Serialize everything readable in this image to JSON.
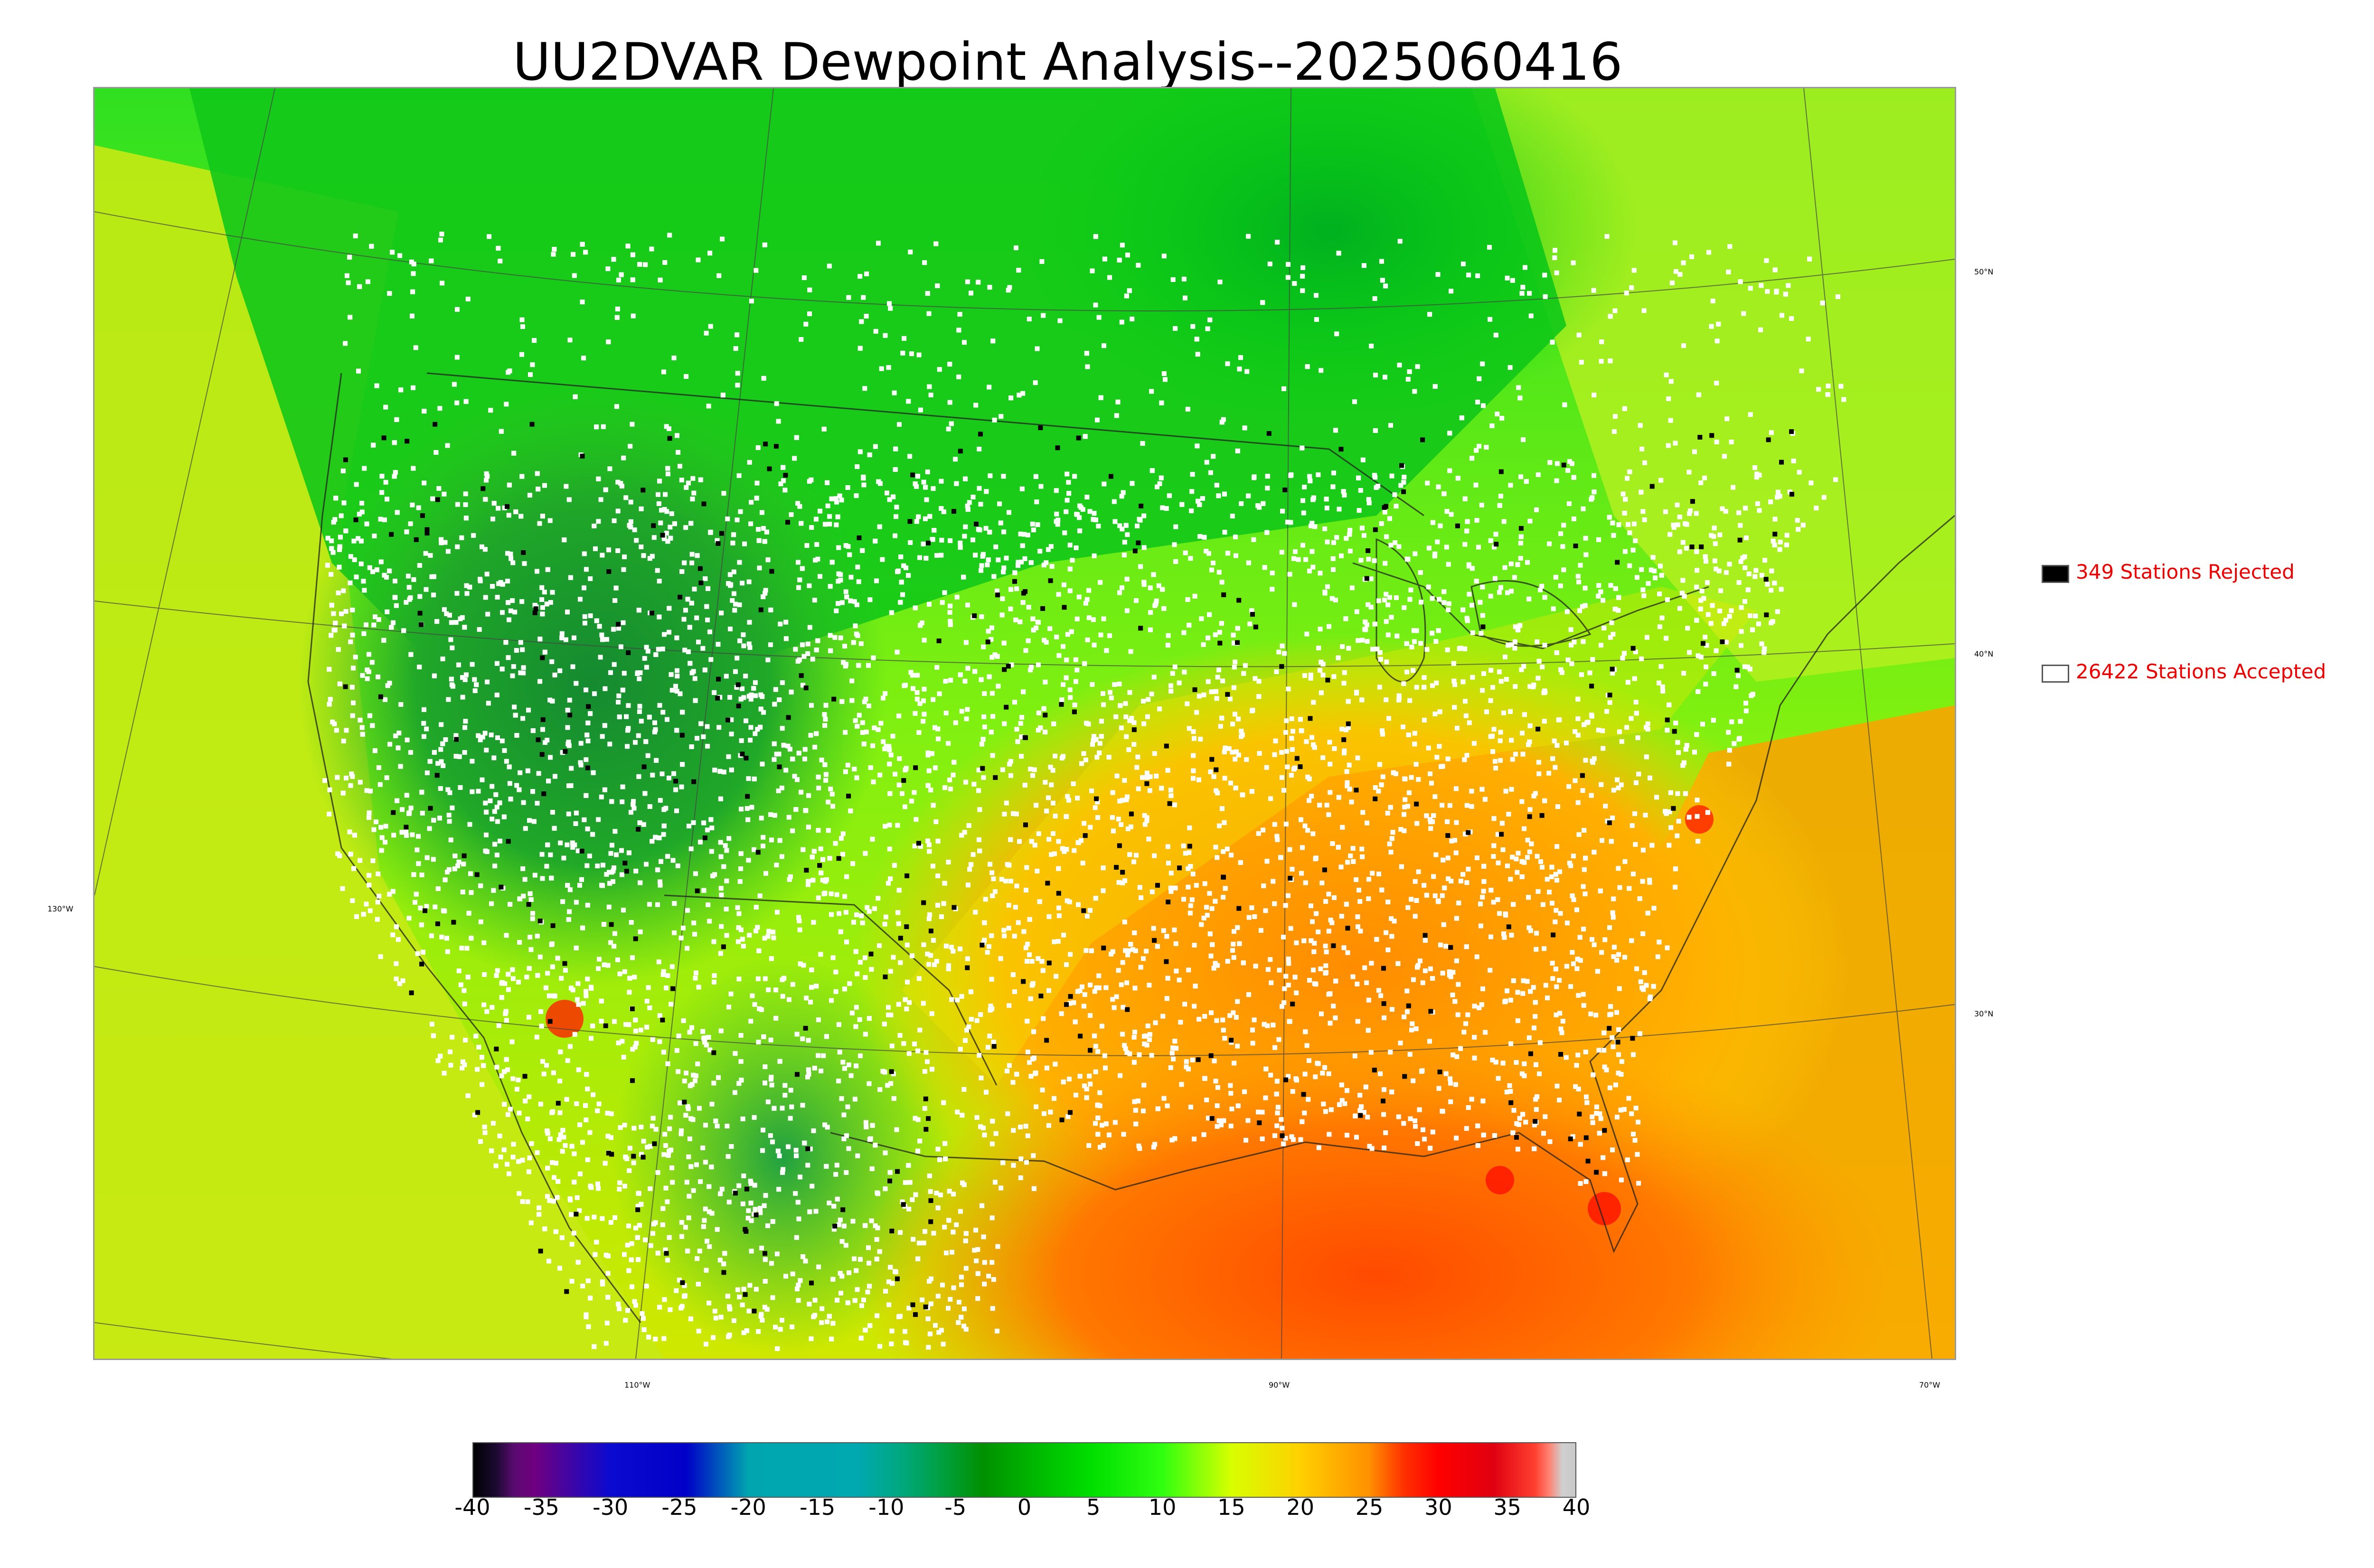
{
  "title": "UU2DVAR Dewpoint Analysis--2025060416",
  "legend": {
    "rejected": {
      "label": "349 Stations Rejected",
      "color": "#000000"
    },
    "accepted": {
      "label": "26422 Stations Accepted",
      "color": "#ffffff"
    }
  },
  "graticule": {
    "latitudes": [
      "50°N",
      "40°N",
      "30°N"
    ],
    "longitudes": [
      "130°W",
      "110°W",
      "90°W",
      "70°W"
    ]
  },
  "colorbar": {
    "ticks": [
      "-40",
      "-35",
      "-30",
      "-25",
      "-20",
      "-15",
      "-10",
      "-5",
      "0",
      "5",
      "10",
      "15",
      "20",
      "25",
      "30",
      "35",
      "40"
    ],
    "range": [
      -40,
      40
    ],
    "stops": [
      {
        "v": -40,
        "color": "#000000"
      },
      {
        "v": -38.3,
        "color": "#1a0a30"
      },
      {
        "v": -37,
        "color": "#5a0a70"
      },
      {
        "v": -35.5,
        "color": "#700080"
      },
      {
        "v": -30,
        "color": "#0a0ad0"
      },
      {
        "v": -24.5,
        "color": "#0000c8"
      },
      {
        "v": -20,
        "color": "#00a5b0"
      },
      {
        "v": -12,
        "color": "#00a8b0"
      },
      {
        "v": -9,
        "color": "#00a880"
      },
      {
        "v": -6,
        "color": "#00a040"
      },
      {
        "v": -3,
        "color": "#009000"
      },
      {
        "v": 0,
        "color": "#00b000"
      },
      {
        "v": 5,
        "color": "#00e000"
      },
      {
        "v": 10,
        "color": "#30ff10"
      },
      {
        "v": 15,
        "color": "#d8ff00"
      },
      {
        "v": 20,
        "color": "#ffd000"
      },
      {
        "v": 25,
        "color": "#ff9000"
      },
      {
        "v": 27.5,
        "color": "#ff3000"
      },
      {
        "v": 30,
        "color": "#ff0000"
      },
      {
        "v": 34,
        "color": "#e00010"
      },
      {
        "v": 37,
        "color": "#ff4030"
      },
      {
        "v": 38,
        "color": "#ff8070"
      },
      {
        "v": 39,
        "color": "#d0d0d0"
      },
      {
        "v": 40,
        "color": "#c8c8c8"
      }
    ]
  },
  "colors": {
    "ocean_pacific": "#c9ec10",
    "ocean_gulf": "#ff7a00",
    "land_north": "#10c010",
    "land_west": "#1a9a28",
    "land_southeast": "#ffb000",
    "station_accepted": "#ffffff",
    "station_rejected": "#000000"
  }
}
